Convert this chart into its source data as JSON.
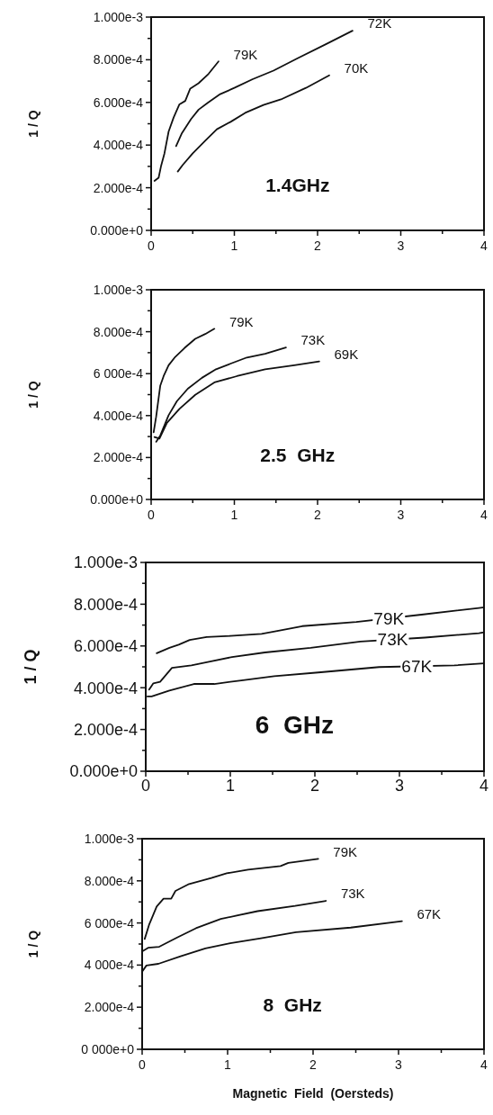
{
  "chart_data": [
    {
      "type": "line",
      "title": "1.4GHz",
      "ylabel": "1 / Q",
      "xlim": [
        0,
        4
      ],
      "ylim": [
        0,
        0.001
      ],
      "xticks": [
        0,
        {
          "value": 0.5,
          "label": null
        },
        1,
        {
          "value": 1.5,
          "label": null
        },
        2,
        {
          "value": 2.5,
          "label": null
        },
        3,
        {
          "value": 3.5,
          "label": null
        },
        4
      ],
      "yticks": [
        {
          "value": 0,
          "label": "0.000e+0"
        },
        {
          "value": 0.0001,
          "label": null
        },
        {
          "value": 0.0002,
          "label": "2.000e-4"
        },
        {
          "value": 0.0003,
          "label": null
        },
        {
          "value": 0.0004,
          "label": "4.000e-4"
        },
        {
          "value": 0.0005,
          "label": null
        },
        {
          "value": 0.0006,
          "label": "6.000e-4"
        },
        {
          "value": 0.0007,
          "label": null
        },
        {
          "value": 0.0008,
          "label": "8.000e-4"
        },
        {
          "value": 0.0009,
          "label": null
        },
        {
          "value": 0.001,
          "label": "1.000e-3"
        }
      ],
      "grid": false,
      "legend": false,
      "marker": "none",
      "line_style": "solid",
      "series": [
        {
          "name": "79K",
          "color": "#111111",
          "x": [
            0.04,
            0.09,
            0.12,
            0.16,
            0.21,
            0.27,
            0.34,
            0.41,
            0.47,
            0.57,
            0.69,
            0.81
          ],
          "values": [
            0.000232,
            0.000247,
            0.000303,
            0.000361,
            0.000463,
            0.000529,
            0.000591,
            0.000607,
            0.000665,
            0.00069,
            0.000734,
            0.000792
          ]
        },
        {
          "name": "72K",
          "color": "#111111",
          "x": [
            0.3,
            0.37,
            0.48,
            0.57,
            0.68,
            0.83,
            1.0,
            1.22,
            1.47,
            1.76,
            2.1,
            2.42
          ],
          "values": [
            0.000395,
            0.000456,
            0.000522,
            0.000566,
            0.000598,
            0.000639,
            0.000668,
            0.000709,
            0.000749,
            0.000807,
            0.000873,
            0.000936
          ]
        },
        {
          "name": "70K",
          "color": "#111111",
          "x": [
            0.32,
            0.38,
            0.5,
            0.65,
            0.79,
            0.96,
            1.13,
            1.35,
            1.56,
            1.86,
            2.14
          ],
          "values": [
            0.000276,
            0.000307,
            0.000361,
            0.00042,
            0.000474,
            0.00051,
            0.000551,
            0.000588,
            0.000614,
            0.000668,
            0.000727
          ]
        }
      ]
    },
    {
      "type": "line",
      "title": "2.5  GHz",
      "ylabel": "1 / Q",
      "xlim": [
        0,
        4
      ],
      "ylim": [
        0,
        0.001
      ],
      "xticks": [
        0,
        {
          "value": 0.5,
          "label": null
        },
        1,
        {
          "value": 1.5,
          "label": null
        },
        2,
        {
          "value": 2.5,
          "label": null
        },
        3,
        {
          "value": 3.5,
          "label": null
        },
        4
      ],
      "yticks": [
        {
          "value": 0,
          "label": "0.000e+0"
        },
        {
          "value": 0.0001,
          "label": null
        },
        {
          "value": 0.0002,
          "label": "2.000e-4"
        },
        {
          "value": 0.0003,
          "label": null
        },
        {
          "value": 0.0004,
          "label": "4.000e-4"
        },
        {
          "value": 0.0005,
          "label": null
        },
        {
          "value": 0.0006,
          "label": "6 000e-4"
        },
        {
          "value": 0.0007,
          "label": null
        },
        {
          "value": 0.0008,
          "label": "8.000e-4"
        },
        {
          "value": 0.0009,
          "label": null
        },
        {
          "value": 0.001,
          "label": "1.000e-3"
        }
      ],
      "grid": false,
      "legend": false,
      "marker": "none",
      "line_style": "solid",
      "series": [
        {
          "name": "79K",
          "color": "#111111",
          "x": [
            0.03,
            0.06,
            0.11,
            0.15,
            0.21,
            0.29,
            0.4,
            0.53,
            0.65,
            0.76
          ],
          "values": [
            0.00032,
            0.000394,
            0.000543,
            0.000588,
            0.00064,
            0.00068,
            0.000722,
            0.000766,
            0.000789,
            0.000814
          ]
        },
        {
          "name": "73K",
          "color": "#111111",
          "x": [
            0.06,
            0.11,
            0.21,
            0.31,
            0.44,
            0.61,
            0.78,
            0.95,
            1.15,
            1.37,
            1.62
          ],
          "values": [
            0.000275,
            0.000305,
            0.000402,
            0.000469,
            0.000528,
            0.00058,
            0.000621,
            0.000647,
            0.000677,
            0.000695,
            0.000725
          ]
        },
        {
          "name": "69K",
          "color": "#111111",
          "x": [
            0.04,
            0.1,
            0.19,
            0.34,
            0.53,
            0.76,
            1.03,
            1.37,
            1.72,
            2.02
          ],
          "values": [
            0.000298,
            0.00029,
            0.000365,
            0.000432,
            0.000499,
            0.000558,
            0.000588,
            0.000621,
            0.00064,
            0.000658
          ]
        }
      ]
    },
    {
      "type": "line",
      "title": "6  GHz",
      "ylabel": "1 / Q",
      "xlim": [
        0,
        4
      ],
      "ylim": [
        0,
        0.001
      ],
      "xticks": [
        0,
        {
          "value": 0.5,
          "label": null
        },
        1,
        {
          "value": 1.5,
          "label": null
        },
        2,
        {
          "value": 2.5,
          "label": null
        },
        3,
        {
          "value": 3.5,
          "label": null
        },
        4
      ],
      "yticks": [
        {
          "value": 0,
          "label": "0.000e+0"
        },
        {
          "value": 0.0001,
          "label": null
        },
        {
          "value": 0.0002,
          "label": "2.000e-4"
        },
        {
          "value": 0.0003,
          "label": null
        },
        {
          "value": 0.0004,
          "label": "4.000e-4"
        },
        {
          "value": 0.0005,
          "label": null
        },
        {
          "value": 0.0006,
          "label": "6.000e-4"
        },
        {
          "value": 0.0007,
          "label": null
        },
        {
          "value": 0.0008,
          "label": "8.000e-4"
        },
        {
          "value": 0.0009,
          "label": null
        },
        {
          "value": 0.001,
          "label": "1.000e-3"
        }
      ],
      "grid": false,
      "legend": false,
      "marker": "none",
      "line_style": "solid",
      "series": [
        {
          "name": "79K",
          "color": "#111111",
          "x": [
            0.13,
            0.28,
            0.39,
            0.52,
            0.72,
            1.0,
            1.37,
            1.57,
            1.85,
            2.49,
            3.26,
            3.94,
            4.0
          ],
          "values": [
            0.000565,
            0.000591,
            0.000606,
            0.000629,
            0.000643,
            0.000648,
            0.000658,
            0.000673,
            0.000695,
            0.000715,
            0.00075,
            0.000782,
            0.000785
          ]
        },
        {
          "name": "73K",
          "color": "#111111",
          "x": [
            0.04,
            0.09,
            0.17,
            0.31,
            0.54,
            0.76,
            1.02,
            1.41,
            1.95,
            2.54,
            3.3,
            3.94,
            4.0
          ],
          "values": [
            0.000391,
            0.000421,
            0.000428,
            0.000495,
            0.000507,
            0.000525,
            0.000547,
            0.000569,
            0.000591,
            0.000621,
            0.00064,
            0.000661,
            0.000665
          ]
        },
        {
          "name": "67K",
          "color": "#111111",
          "x": [
            0.02,
            0.07,
            0.28,
            0.57,
            0.81,
            1.13,
            1.52,
            2.04,
            2.76,
            3.65,
            4.0
          ],
          "values": [
            0.000358,
            0.000358,
            0.000386,
            0.000418,
            0.000418,
            0.000435,
            0.000455,
            0.000473,
            0.000499,
            0.000507,
            0.000517
          ]
        }
      ]
    },
    {
      "type": "line",
      "title": "8  GHz",
      "ylabel": "1 / Q",
      "xlabel": "Magnetic  Field  (Oersteds)",
      "xlim": [
        0,
        4
      ],
      "ylim": [
        0,
        0.001
      ],
      "xticks": [
        0,
        {
          "value": 0.5,
          "label": null
        },
        1,
        {
          "value": 1.5,
          "label": null
        },
        2,
        {
          "value": 2.5,
          "label": null
        },
        3,
        {
          "value": 3.5,
          "label": null
        },
        4
      ],
      "yticks": [
        {
          "value": 0,
          "label": "0 000e+0"
        },
        {
          "value": 0.0001,
          "label": null
        },
        {
          "value": 0.0002,
          "label": "2.000e-4"
        },
        {
          "value": 0.0003,
          "label": null
        },
        {
          "value": 0.0004,
          "label": "4 000e-4"
        },
        {
          "value": 0.0005,
          "label": null
        },
        {
          "value": 0.0006,
          "label": "6 000e-4"
        },
        {
          "value": 0.0007,
          "label": null
        },
        {
          "value": 0.0008,
          "label": "8.000e-4"
        },
        {
          "value": 0.0009,
          "label": null
        },
        {
          "value": 0.001,
          "label": "1.000e-3"
        }
      ],
      "grid": false,
      "legend": false,
      "marker": "none",
      "line_style": "solid",
      "series": [
        {
          "name": "79K",
          "color": "#111111",
          "x": [
            0.03,
            0.08,
            0.17,
            0.25,
            0.34,
            0.39,
            0.55,
            0.81,
            0.99,
            1.24,
            1.62,
            1.71,
            2.06
          ],
          "values": [
            0.000524,
            0.00059,
            0.000678,
            0.000715,
            0.000715,
            0.000752,
            0.000785,
            0.000814,
            0.000836,
            0.000853,
            0.00087,
            0.000885,
            0.000904
          ]
        },
        {
          "name": "73K",
          "color": "#111111",
          "x": [
            0.0,
            0.07,
            0.2,
            0.41,
            0.63,
            0.92,
            1.35,
            1.79,
            2.15
          ],
          "values": [
            0.000465,
            0.000482,
            0.000487,
            0.000531,
            0.000575,
            0.000619,
            0.000656,
            0.000681,
            0.000705
          ]
        },
        {
          "name": "67K",
          "color": "#111111",
          "x": [
            0.0,
            0.05,
            0.19,
            0.45,
            0.74,
            1.03,
            1.39,
            1.8,
            2.44,
            3.04
          ],
          "values": [
            0.000369,
            0.000398,
            0.000406,
            0.000442,
            0.000479,
            0.000504,
            0.000527,
            0.000556,
            0.000578,
            0.000608
          ]
        }
      ]
    }
  ]
}
